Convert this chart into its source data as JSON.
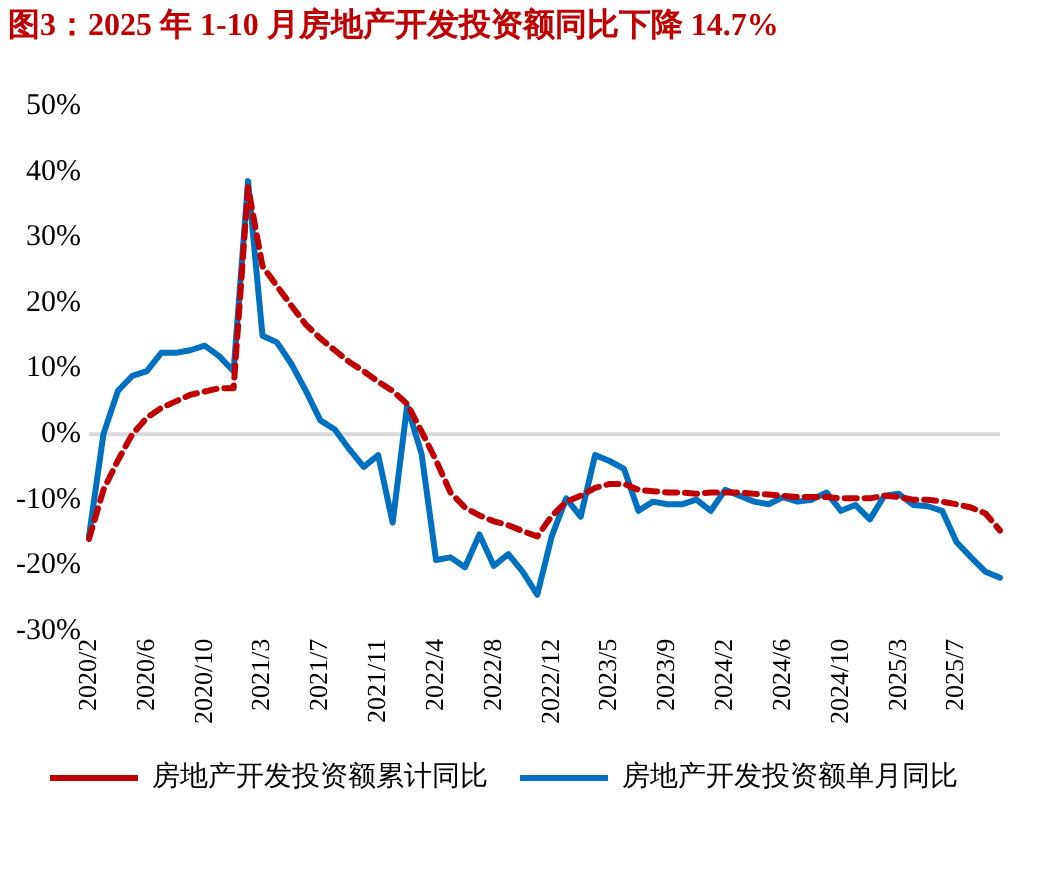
{
  "chart_data": {
    "type": "line",
    "title": "图3：2025 年 1-10 月房地产开发投资额同比下降 14.7%",
    "categories": [
      "2020/2",
      null,
      null,
      null,
      "2020/6",
      null,
      null,
      null,
      "2020/10",
      null,
      null,
      null,
      "2021/3",
      null,
      null,
      null,
      "2021/7",
      null,
      null,
      null,
      "2021/11",
      null,
      null,
      null,
      "2022/4",
      null,
      null,
      null,
      "2022/8",
      null,
      null,
      null,
      "2022/12",
      null,
      null,
      null,
      "2023/5",
      null,
      null,
      null,
      "2023/9",
      null,
      null,
      null,
      "2024/2",
      null,
      null,
      null,
      "2024/6",
      null,
      null,
      null,
      "2024/10",
      null,
      null,
      null,
      "2025/3",
      null,
      null,
      null,
      "2025/7",
      null,
      null,
      null
    ],
    "series": [
      {
        "name": "房地产开发投资额累计同比",
        "color": "#c00000",
        "line_style": "dashed",
        "values": [
          -16,
          -8.5,
          -4,
          0,
          2.5,
          4,
          5,
          6,
          6.5,
          7,
          7,
          37.7,
          25.6,
          22.6,
          19.6,
          16.7,
          14.6,
          12.8,
          11,
          9.6,
          8,
          6.6,
          4.6,
          0.4,
          -4,
          -8.9,
          -11.2,
          -12.4,
          -13.3,
          -13.9,
          -14.8,
          -15.6,
          -12.5,
          -10.3,
          -9.4,
          -8.2,
          -7.6,
          -7.6,
          -8.5,
          -8.7,
          -8.9,
          -8.9,
          -9.1,
          -8.9,
          -8.9,
          -8.9,
          -9.1,
          -9.2,
          -9.4,
          -9.6,
          -9.6,
          -9.6,
          -9.8,
          -9.8,
          -9.8,
          -9.4,
          -9.6,
          -10,
          -10,
          -10.3,
          -10.7,
          -11.2,
          -12.1,
          -14.7
        ]
      },
      {
        "name": "房地产开发投资额单月同比",
        "color": "#0070c0",
        "line_style": "solid",
        "values": [
          -15.6,
          0,
          6.6,
          8.9,
          9.6,
          12.4,
          12.4,
          12.8,
          13.5,
          11.9,
          9.6,
          38.6,
          15,
          14,
          10.7,
          6.6,
          2.1,
          0.7,
          -2.3,
          -5,
          -3.2,
          -13.5,
          4.3,
          -3,
          -19.2,
          -18.8,
          -20.3,
          -15.3,
          -20.1,
          -18.3,
          -21,
          -24.5,
          -15.6,
          -9.8,
          -12.6,
          -3.2,
          -4.1,
          -5.3,
          -11.7,
          -10.3,
          -10.7,
          -10.7,
          -10,
          -11.7,
          -8.5,
          -9.4,
          -10.3,
          -10.7,
          -9.6,
          -10.3,
          -10,
          -8.9,
          -11.7,
          -10.8,
          -13,
          -9.4,
          -9.1,
          -10.8,
          -11,
          -11.7,
          -16.5,
          -18.8,
          -21,
          -21.9
        ]
      }
    ],
    "ylim": [
      -30,
      50
    ],
    "yticks": [
      {
        "value": -30,
        "label": "-30%"
      },
      {
        "value": -20,
        "label": "-20%"
      },
      {
        "value": -10,
        "label": "-10%"
      },
      {
        "value": 0,
        "label": "0%"
      },
      {
        "value": 10,
        "label": "10%"
      },
      {
        "value": 20,
        "label": "20%"
      },
      {
        "value": 30,
        "label": "30%"
      },
      {
        "value": 40,
        "label": "40%"
      },
      {
        "value": 50,
        "label": "50%"
      }
    ],
    "ref_lines": [
      {
        "axis": "y",
        "value": 0,
        "color": "#d9d9d9"
      }
    ],
    "grid": false,
    "legend": "bottom",
    "marker": "none"
  }
}
